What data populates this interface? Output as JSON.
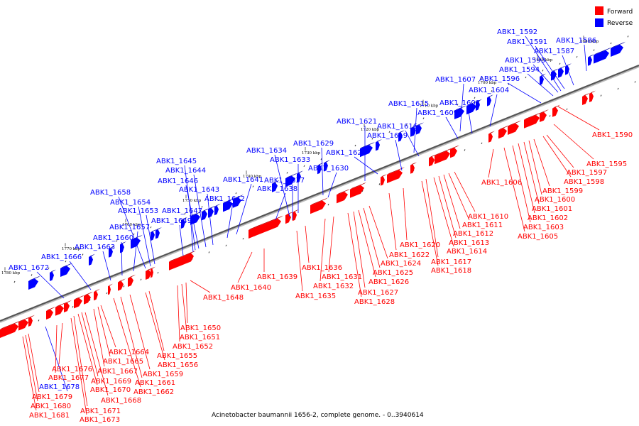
{
  "legend": {
    "forward_label": "Forward",
    "reverse_label": "Reverse",
    "forward_color": "#ff0000",
    "reverse_color": "#0000ff"
  },
  "caption": {
    "organism": "Acinetobacter baumannii 1656-2, complete genome.",
    "range": "- 0..3940614"
  },
  "ticks": [
    "1680 kbp",
    "1690 kbp",
    "1700 kbp",
    "1710 kbp",
    "1720 kbp",
    "1730 kbp",
    "1740 kbp",
    "1750 kbp",
    "1760 kbp",
    "1770 kbp",
    "1780 kbp"
  ],
  "reverse_genes": [
    "ABK1_1586",
    "ABK1_1587",
    "ABK1_1591",
    "ABK1_1592",
    "ABK1_1593",
    "ABK1_1594",
    "ABK1_1596",
    "ABK1_1604",
    "ABK1_1607",
    "ABK1_1608",
    "ABK1_1609",
    "ABK1_1615",
    "ABK1_1616",
    "ABK1_1619",
    "ABK1_1621",
    "ABK1_1623",
    "ABK1_1629",
    "ABK1_1630",
    "ABK1_1633",
    "ABK1_1634",
    "ABK1_1637",
    "ABK1_1638",
    "ABK1_1641",
    "ABK1_1642",
    "ABK1_1643",
    "ABK1_1644",
    "ABK1_1645",
    "ABK1_1646",
    "ABK1_1647",
    "ABK1_1649",
    "ABK1_1653",
    "ABK1_1654",
    "ABK1_1657",
    "ABK1_1658",
    "ABK1_1660",
    "ABK1_1663",
    "ABK1_1666",
    "ABK1_1672",
    "ABK1_1678"
  ],
  "forward_genes": [
    "ABK1_1590",
    "ABK1_1595",
    "ABK1_1597",
    "ABK1_1598",
    "ABK1_1599",
    "ABK1_1600",
    "ABK1_1601",
    "ABK1_1602",
    "ABK1_1603",
    "ABK1_1605",
    "ABK1_1606",
    "ABK1_1610",
    "ABK1_1611",
    "ABK1_1612",
    "ABK1_1613",
    "ABK1_1614",
    "ABK1_1617",
    "ABK1_1618",
    "ABK1_1620",
    "ABK1_1622",
    "ABK1_1624",
    "ABK1_1625",
    "ABK1_1626",
    "ABK1_1627",
    "ABK1_1628",
    "ABK1_1631",
    "ABK1_1632",
    "ABK1_1635",
    "ABK1_1636",
    "ABK1_1639",
    "ABK1_1640",
    "ABK1_1648",
    "ABK1_1650",
    "ABK1_1651",
    "ABK1_1652",
    "ABK1_1655",
    "ABK1_1656",
    "ABK1_1659",
    "ABK1_1661",
    "ABK1_1662",
    "ABK1_1664",
    "ABK1_1665",
    "ABK1_1667",
    "ABK1_1668",
    "ABK1_1669",
    "ABK1_1670",
    "ABK1_1671",
    "ABK1_1673",
    "ABK1_1676",
    "ABK1_1677",
    "ABK1_1679",
    "ABK1_1680",
    "ABK1_1681"
  ]
}
